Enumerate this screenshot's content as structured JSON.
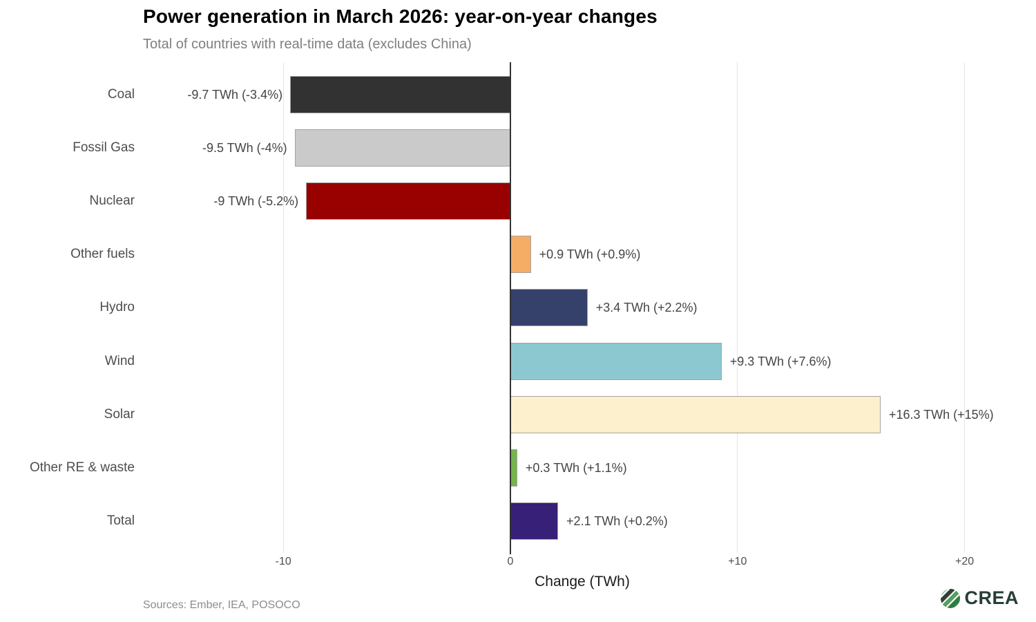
{
  "header": {
    "title": "Power generation in March 2026: year-on-year changes",
    "subtitle": "Total of countries with real-time data (excludes China)"
  },
  "chart_data": {
    "type": "bar",
    "orientation": "horizontal",
    "title": "Power generation in March 2026: year-on-year changes",
    "subtitle": "Total of countries with real-time data (excludes China)",
    "xlabel": "Change (TWh)",
    "ylabel": "",
    "unit": "TWh",
    "xlim": [
      -16.1,
      22.4
    ],
    "grid": "vertical-gridlines-only",
    "legend": "none",
    "categories": [
      "Coal",
      "Fossil Gas",
      "Nuclear",
      "Other fuels",
      "Hydro",
      "Wind",
      "Solar",
      "Other RE & waste",
      "Total"
    ],
    "values": [
      -9.7,
      -9.5,
      -9,
      0.9,
      3.4,
      9.3,
      16.3,
      0.3,
      2.1
    ],
    "rows": [
      {
        "category": "Coal",
        "value": -9.7,
        "label": "-9.7 TWh (-3.4%)",
        "color": "#323232"
      },
      {
        "category": "Fossil Gas",
        "value": -9.5,
        "label": "-9.5 TWh (-4%)",
        "color": "#cacaca"
      },
      {
        "category": "Nuclear",
        "value": -9,
        "label": "-9 TWh (-5.2%)",
        "color": "#990000"
      },
      {
        "category": "Other fuels",
        "value": 0.9,
        "label": "+0.9 TWh (+0.9%)",
        "color": "#f5ad66"
      },
      {
        "category": "Hydro",
        "value": 3.4,
        "label": "+3.4 TWh (+2.2%)",
        "color": "#35406b"
      },
      {
        "category": "Wind",
        "value": 9.3,
        "label": "+9.3 TWh (+7.6%)",
        "color": "#8cc8d0"
      },
      {
        "category": "Solar",
        "value": 16.3,
        "label": "+16.3 TWh (+15%)",
        "color": "#fdf0cc"
      },
      {
        "category": "Other RE & waste",
        "value": 0.3,
        "label": "+0.3 TWh (+1.1%)",
        "color": "#75b54a"
      },
      {
        "category": "Total",
        "value": 2.1,
        "label": "+2.1 TWh (+0.2%)",
        "color": "#372077"
      }
    ],
    "x_ticks": [
      {
        "value": -10,
        "label": "-10"
      },
      {
        "value": 0,
        "label": "0"
      },
      {
        "value": 10,
        "label": "+10"
      },
      {
        "value": 20,
        "label": "+20"
      }
    ]
  },
  "style_colors": {
    "gridline": "#e4e4e4",
    "zero_line": "#333333",
    "bar_border": "#a3a3a3",
    "logo_dark_green": "#263e36",
    "logo_greens": [
      "#9bcf8b",
      "#2f4038",
      "#57a05e",
      "#2e7d46",
      "#6db563"
    ]
  },
  "footer": {
    "sources": "Sources: Ember, IEA, POSOCO",
    "logo_text": "CREA"
  }
}
